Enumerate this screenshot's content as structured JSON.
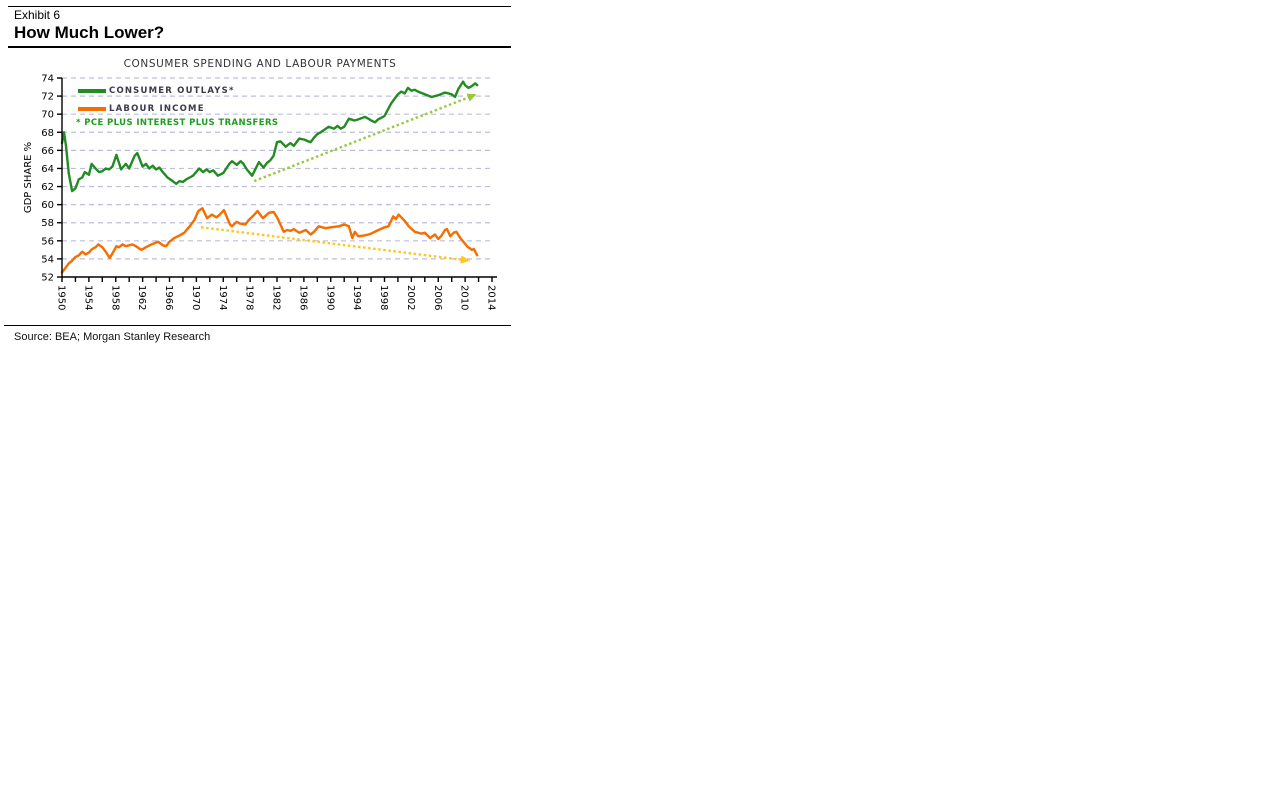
{
  "page": {
    "exhibit_label": "Exhibit 6",
    "title": "How Much Lower?",
    "source": "Source: BEA; Morgan Stanley Research"
  },
  "chart_data": {
    "type": "line",
    "title": "CONSUMER SPENDING AND LABOUR PAYMENTS",
    "xlabel": "",
    "ylabel": "GDP SHARE %",
    "ylim": [
      52,
      74
    ],
    "xlim": [
      1950,
      2014
    ],
    "y_ticks": [
      52,
      54,
      56,
      58,
      60,
      62,
      64,
      66,
      68,
      70,
      72,
      74
    ],
    "x_tick_labels": [
      1950,
      1954,
      1958,
      1962,
      1966,
      1970,
      1974,
      1978,
      1982,
      1986,
      1990,
      1994,
      1998,
      2002,
      2006,
      2010,
      2014
    ],
    "x_minor_tick_step": 2,
    "grid": "horizontal dashed",
    "legend_position": "top-left inside plot",
    "footnote": "* PCE PLUS INTEREST PLUS TRANSFERS",
    "colors": {
      "consumer_outlays": "#228B22",
      "labour_income": "#f66d00",
      "consumer_trend": "#97c93d",
      "labour_trend": "#ffc61e",
      "grid": "#bdbde0",
      "axis": "#000000",
      "footnote_text": "#1e9e1e",
      "legend_text": "#3a3a4a"
    },
    "series": [
      {
        "name": "CONSUMER OUTLAYS*",
        "x": [
          1950.0,
          1950.3,
          1950.6,
          1951.0,
          1951.5,
          1952.0,
          1952.5,
          1953.0,
          1953.4,
          1954.0,
          1954.4,
          1955.0,
          1955.5,
          1956.0,
          1956.5,
          1957.0,
          1957.5,
          1958.1,
          1958.8,
          1959.5,
          1960.0,
          1960.8,
          1961.2,
          1962.0,
          1962.5,
          1963.0,
          1963.5,
          1964.0,
          1964.5,
          1965.0,
          1965.7,
          1966.3,
          1967.0,
          1967.5,
          1968.0,
          1968.5,
          1969.0,
          1969.5,
          1970.4,
          1971.0,
          1971.5,
          1972.0,
          1972.5,
          1973.2,
          1974.0,
          1974.9,
          1975.3,
          1976.0,
          1976.6,
          1977.0,
          1977.5,
          1978.3,
          1979.3,
          1980.0,
          1980.5,
          1981.0,
          1981.5,
          1982.0,
          1982.5,
          1983.3,
          1984.0,
          1984.5,
          1985.3,
          1986.0,
          1987.0,
          1987.5,
          1988.0,
          1988.5,
          1989.7,
          1990.5,
          1991.0,
          1991.5,
          1992.0,
          1992.7,
          1993.5,
          1994.0,
          1995.1,
          1995.6,
          1996.0,
          1996.6,
          1997.0,
          1998.0,
          1999.0,
          2000.0,
          2000.5,
          2001.0,
          2001.5,
          2002.0,
          2002.5,
          2003.0,
          2004.0,
          2005.0,
          2006.0,
          2007.0,
          2007.5,
          2008.0,
          2008.5,
          2009.0,
          2009.7,
          2010.0,
          2010.5,
          2011.0,
          2011.5,
          2011.8
        ],
        "values": [
          66.8,
          68.0,
          66.5,
          63.5,
          61.5,
          61.8,
          62.8,
          63.0,
          63.6,
          63.3,
          64.5,
          64.0,
          63.6,
          63.7,
          64.0,
          63.9,
          64.2,
          65.5,
          63.9,
          64.5,
          64.0,
          65.4,
          65.7,
          64.2,
          64.5,
          64.0,
          64.3,
          63.9,
          64.1,
          63.6,
          63.0,
          62.7,
          62.3,
          62.6,
          62.5,
          62.8,
          63.0,
          63.2,
          64.0,
          63.6,
          63.9,
          63.6,
          63.8,
          63.2,
          63.5,
          64.5,
          64.8,
          64.4,
          64.8,
          64.5,
          63.9,
          63.2,
          64.7,
          64.1,
          64.6,
          64.9,
          65.4,
          66.9,
          67.0,
          66.4,
          66.8,
          66.5,
          67.3,
          67.2,
          66.9,
          67.4,
          67.8,
          68.0,
          68.6,
          68.4,
          68.7,
          68.4,
          68.6,
          69.5,
          69.3,
          69.4,
          69.7,
          69.5,
          69.3,
          69.1,
          69.4,
          69.8,
          71.2,
          72.2,
          72.5,
          72.3,
          72.9,
          72.6,
          72.7,
          72.5,
          72.2,
          71.9,
          72.1,
          72.4,
          72.3,
          72.2,
          71.9,
          72.8,
          73.6,
          73.2,
          72.9,
          73.1,
          73.4,
          73.2
        ]
      },
      {
        "name": "LABOUR INCOME",
        "x": [
          1950.0,
          1950.5,
          1951.0,
          1951.5,
          1952.0,
          1952.5,
          1953.0,
          1953.5,
          1954.0,
          1954.5,
          1955.0,
          1955.4,
          1956.0,
          1956.5,
          1957.1,
          1957.5,
          1958.1,
          1958.5,
          1959.0,
          1959.5,
          1960.0,
          1960.5,
          1961.0,
          1961.8,
          1962.5,
          1963.3,
          1964.3,
          1965.0,
          1965.5,
          1966.0,
          1966.7,
          1967.5,
          1968.2,
          1969.0,
          1969.7,
          1970.3,
          1970.9,
          1971.6,
          1972.3,
          1973.0,
          1973.5,
          1974.1,
          1975.0,
          1975.3,
          1976.0,
          1976.5,
          1977.3,
          1977.8,
          1978.5,
          1979.1,
          1979.9,
          1980.8,
          1981.5,
          1982.0,
          1982.5,
          1983.0,
          1983.5,
          1984.0,
          1984.5,
          1985.3,
          1986.3,
          1987.0,
          1987.5,
          1988.2,
          1989.2,
          1990.0,
          1991.2,
          1992.0,
          1992.7,
          1993.2,
          1993.6,
          1994.1,
          1995.0,
          1995.6,
          1996.0,
          1997.1,
          1998.0,
          1998.6,
          1999.3,
          1999.7,
          2000.1,
          2000.5,
          2001.0,
          2001.6,
          2002.5,
          2003.0,
          2003.5,
          2004.0,
          2004.8,
          2005.5,
          2006.0,
          2006.5,
          2007.0,
          2007.3,
          2007.8,
          2008.3,
          2008.7,
          2009.3,
          2009.9,
          2010.4,
          2010.7,
          2011.0,
          2011.3,
          2011.8
        ],
        "values": [
          52.5,
          53.0,
          53.5,
          53.8,
          54.2,
          54.4,
          54.8,
          54.5,
          54.7,
          55.1,
          55.3,
          55.6,
          55.3,
          54.8,
          54.1,
          54.6,
          55.4,
          55.3,
          55.6,
          55.4,
          55.5,
          55.6,
          55.4,
          55.0,
          55.3,
          55.6,
          55.9,
          55.5,
          55.4,
          55.9,
          56.3,
          56.6,
          56.9,
          57.6,
          58.3,
          59.3,
          59.6,
          58.5,
          58.9,
          58.6,
          58.9,
          59.4,
          57.8,
          57.6,
          58.1,
          57.9,
          57.8,
          58.3,
          58.8,
          59.3,
          58.5,
          59.1,
          59.2,
          58.6,
          57.8,
          57.0,
          57.2,
          57.1,
          57.3,
          56.9,
          57.2,
          56.7,
          57.0,
          57.6,
          57.4,
          57.5,
          57.6,
          57.8,
          57.6,
          56.3,
          57.0,
          56.5,
          56.6,
          56.7,
          56.8,
          57.2,
          57.5,
          57.6,
          58.7,
          58.4,
          58.9,
          58.6,
          58.2,
          57.6,
          57.0,
          56.9,
          56.8,
          56.9,
          56.3,
          56.7,
          56.2,
          56.6,
          57.2,
          57.3,
          56.5,
          56.9,
          57.0,
          56.3,
          55.75,
          55.3,
          55.2,
          55.0,
          55.1,
          54.4
        ]
      }
    ],
    "trend_arrows": [
      {
        "name": "consumer-outlays-trend",
        "from": [
          1978.6,
          62.6
        ],
        "to": [
          2011.7,
          72.2
        ]
      },
      {
        "name": "labour-income-trend",
        "from": [
          1970.7,
          57.5
        ],
        "to": [
          2010.7,
          53.8
        ]
      }
    ]
  }
}
